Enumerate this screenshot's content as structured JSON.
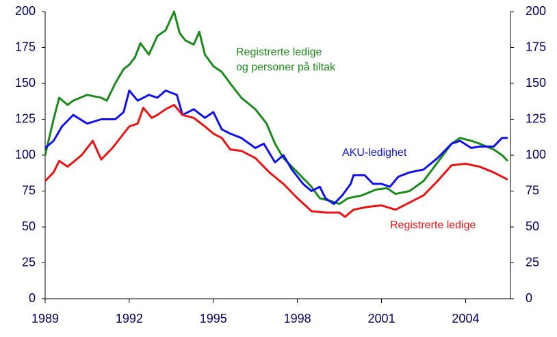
{
  "chart_data": {
    "type": "line",
    "annotations": [
      "Registrerte ledige",
      "og personer på tiltak",
      "AKU-ledighet",
      "Registrerte ledige"
    ],
    "xlim": [
      1989,
      2005.6
    ],
    "xticks": [
      1989,
      1992,
      1995,
      1998,
      2001,
      2004
    ],
    "ylim": [
      0,
      200
    ],
    "yticks": [
      0,
      25,
      50,
      75,
      100,
      125,
      150,
      175,
      200
    ],
    "y2lim": [
      0,
      200
    ],
    "y2ticks": [
      0,
      25,
      50,
      75,
      100,
      125,
      150,
      175,
      200
    ],
    "grid": false,
    "series": [
      {
        "name": "Registrerte ledige og personer på tiltak",
        "color": "#1a8a1a",
        "x": [
          1989.0,
          1989.3,
          1989.5,
          1989.8,
          1990.0,
          1990.5,
          1991.0,
          1991.2,
          1991.5,
          1991.8,
          1992.0,
          1992.2,
          1992.4,
          1992.7,
          1993.0,
          1993.3,
          1993.6,
          1993.8,
          1994.0,
          1994.3,
          1994.5,
          1994.7,
          1995.0,
          1995.3,
          1995.6,
          1996.0,
          1996.5,
          1996.9,
          1997.2,
          1997.5,
          1998.0,
          1998.5,
          1998.8,
          1999.2,
          1999.5,
          1999.8,
          2000.3,
          2000.8,
          2001.2,
          2001.5,
          2002.0,
          2002.5,
          2003.0,
          2003.5,
          2003.8,
          2004.2,
          2004.5,
          2005.0,
          2005.3,
          2005.5
        ],
        "values": [
          100,
          125,
          140,
          135,
          138,
          142,
          140,
          138,
          150,
          160,
          163,
          168,
          178,
          170,
          183,
          187,
          200,
          185,
          180,
          177,
          186,
          170,
          162,
          158,
          150,
          140,
          132,
          122,
          108,
          98,
          88,
          78,
          70,
          68,
          66,
          70,
          72,
          76,
          77,
          73,
          75,
          82,
          95,
          108,
          112,
          110,
          108,
          104,
          100,
          96
        ]
      },
      {
        "name": "AKU-ledighet",
        "color": "#1010ee",
        "x": [
          1989.0,
          1989.3,
          1989.6,
          1990.0,
          1990.5,
          1991.0,
          1991.5,
          1991.8,
          1992.0,
          1992.3,
          1992.7,
          1993.0,
          1993.3,
          1993.7,
          1993.9,
          1994.3,
          1994.7,
          1995.0,
          1995.3,
          1995.6,
          1996.0,
          1996.5,
          1996.8,
          1997.2,
          1997.5,
          1997.8,
          1998.2,
          1998.5,
          1998.8,
          1999.0,
          1999.3,
          1999.6,
          1999.9,
          2000.0,
          2000.4,
          2000.7,
          2001.0,
          2001.3,
          2001.6,
          2002.0,
          2002.5,
          2003.0,
          2003.5,
          2003.8,
          2004.2,
          2004.5,
          2005.0,
          2005.3,
          2005.5
        ],
        "values": [
          105,
          110,
          120,
          128,
          122,
          125,
          125,
          130,
          145,
          138,
          142,
          140,
          145,
          142,
          128,
          132,
          126,
          130,
          118,
          115,
          112,
          105,
          108,
          95,
          100,
          90,
          80,
          75,
          78,
          70,
          66,
          72,
          80,
          86,
          86,
          80,
          80,
          78,
          85,
          88,
          90,
          98,
          108,
          110,
          105,
          106,
          106,
          112,
          112
        ]
      },
      {
        "name": "Registrerte ledige",
        "color": "#ee1111",
        "x": [
          1989.0,
          1989.3,
          1989.5,
          1989.8,
          1990.3,
          1990.7,
          1991.0,
          1991.4,
          1991.8,
          1992.0,
          1992.3,
          1992.5,
          1992.8,
          1993.0,
          1993.3,
          1993.6,
          1993.9,
          1994.3,
          1994.7,
          1995.0,
          1995.3,
          1995.6,
          1996.0,
          1996.5,
          1997.0,
          1997.5,
          1998.0,
          1998.5,
          1999.0,
          1999.5,
          1999.7,
          2000.0,
          2000.5,
          2001.0,
          2001.5,
          2002.0,
          2002.5,
          2003.0,
          2003.5,
          2004.0,
          2004.5,
          2005.0,
          2005.5
        ],
        "values": [
          82,
          88,
          96,
          92,
          100,
          110,
          97,
          105,
          115,
          120,
          122,
          133,
          126,
          128,
          132,
          135,
          128,
          126,
          120,
          115,
          112,
          104,
          103,
          98,
          88,
          80,
          70,
          61,
          60,
          60,
          57,
          62,
          64,
          65,
          62,
          67,
          72,
          82,
          93,
          94,
          92,
          88,
          83
        ]
      }
    ]
  }
}
